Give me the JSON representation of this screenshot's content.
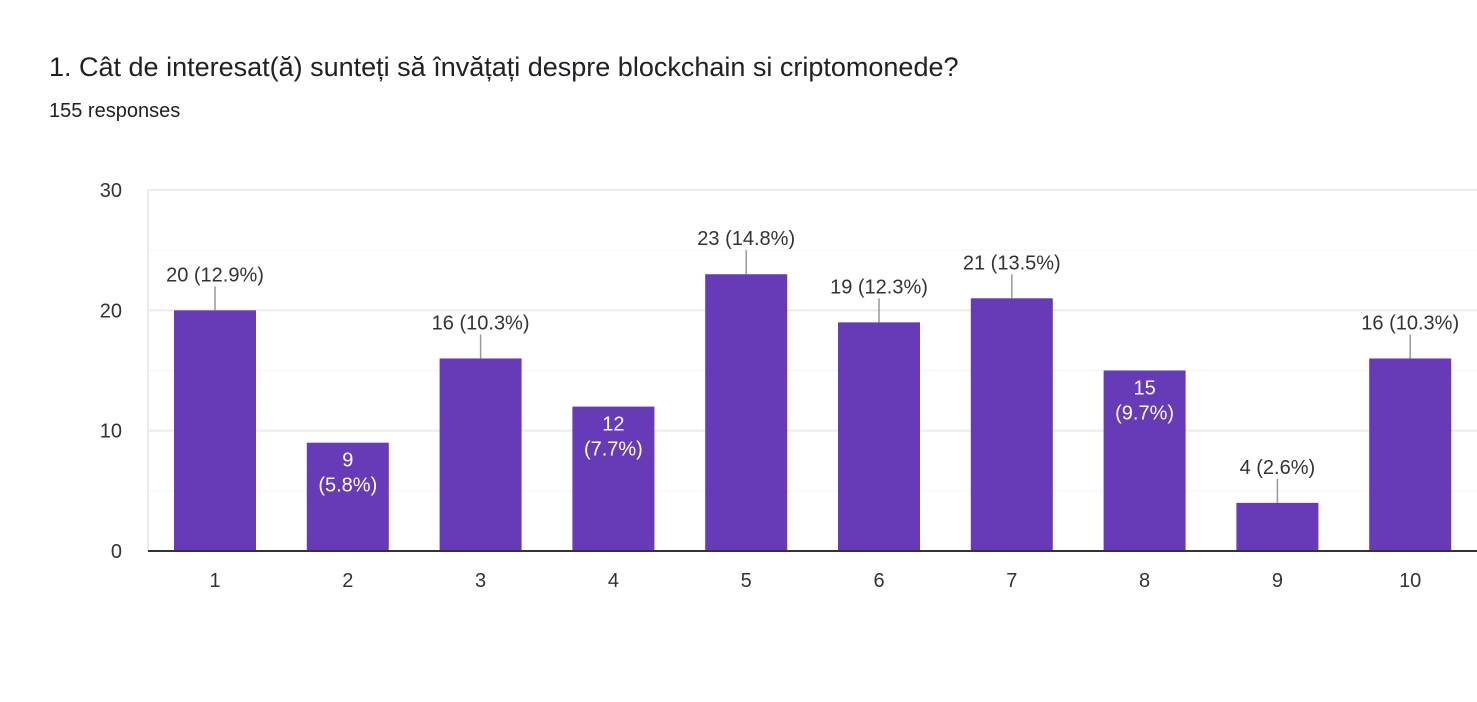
{
  "header": {
    "question_title": "1. Cât de interesat(ă) sunteți să învățați despre blockchain si criptomonede?",
    "responses_label": "155 responses"
  },
  "colors": {
    "bar": "#673ab7",
    "gridline": "#ebebeb",
    "axis": "#333333",
    "leader": "#999999",
    "text": "#333333",
    "inside_label": "#ffffff"
  },
  "chart_data": {
    "type": "bar",
    "title": "",
    "xlabel": "",
    "ylabel": "",
    "categories": [
      "1",
      "2",
      "3",
      "4",
      "5",
      "6",
      "7",
      "8",
      "9",
      "10"
    ],
    "values": [
      20,
      9,
      16,
      12,
      23,
      19,
      21,
      15,
      4,
      16
    ],
    "percentages": [
      "12.9%",
      "5.8%",
      "10.3%",
      "7.7%",
      "14.8%",
      "12.3%",
      "13.5%",
      "9.7%",
      "2.6%",
      "10.3%"
    ],
    "label_position": [
      "above",
      "inside",
      "above",
      "inside",
      "above",
      "above",
      "above",
      "inside",
      "above",
      "above"
    ],
    "y_ticks": [
      0,
      10,
      20,
      30
    ],
    "ylim": [
      0,
      30
    ],
    "grid": true
  }
}
